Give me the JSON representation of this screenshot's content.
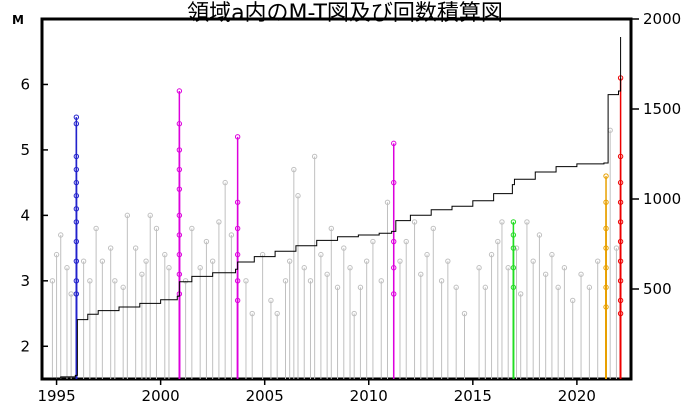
{
  "chart_data": {
    "type": "scatter",
    "title": "領域a内のM-T図及び回数積算図",
    "ylabel": "M",
    "y2label": "",
    "xlim": [
      1994.3,
      2022.6
    ],
    "ylim": [
      1.5,
      7.0
    ],
    "y2lim": [
      0,
      2000
    ],
    "x_ticks": [
      "1995",
      "2000",
      "2005",
      "2010",
      "2015",
      "2020"
    ],
    "x_tick_values": [
      1995,
      2000,
      2005,
      2010,
      2015,
      2020
    ],
    "y_ticks": [
      "2",
      "3",
      "4",
      "5",
      "6"
    ],
    "y_tick_values": [
      2,
      3,
      4,
      5,
      6
    ],
    "y2_ticks": [
      "500",
      "1000",
      "1500",
      "2000"
    ],
    "y2_tick_values": [
      500,
      1000,
      1500,
      2000
    ],
    "colors": {
      "background": "#c0c0c0",
      "blue": "#2222cc",
      "magenta": "#dd00dd",
      "green": "#22dd22",
      "orange": "#e8a000",
      "red": "#ee0000",
      "cumulative": "#000000"
    },
    "series": [
      {
        "color_key": "background",
        "points": [
          [
            1994.8,
            3.0
          ],
          [
            1995.0,
            3.4
          ],
          [
            1995.2,
            3.7
          ],
          [
            1995.5,
            3.2
          ],
          [
            1995.7,
            2.8
          ],
          [
            1996.3,
            3.3
          ],
          [
            1996.6,
            3.0
          ],
          [
            1996.9,
            3.8
          ],
          [
            1997.2,
            3.3
          ],
          [
            1997.6,
            3.5
          ],
          [
            1997.8,
            3.0
          ],
          [
            1998.2,
            2.9
          ],
          [
            1998.4,
            4.0
          ],
          [
            1998.8,
            3.5
          ],
          [
            1999.1,
            3.1
          ],
          [
            1999.3,
            3.3
          ],
          [
            1999.5,
            4.0
          ],
          [
            1999.8,
            3.8
          ],
          [
            2000.2,
            3.4
          ],
          [
            2000.4,
            3.2
          ],
          [
            2001.2,
            3.0
          ],
          [
            2001.5,
            3.8
          ],
          [
            2001.9,
            3.2
          ],
          [
            2002.2,
            3.6
          ],
          [
            2002.5,
            3.3
          ],
          [
            2002.8,
            3.9
          ],
          [
            2003.1,
            4.5
          ],
          [
            2003.4,
            3.7
          ],
          [
            2004.1,
            3.0
          ],
          [
            2004.4,
            2.5
          ],
          [
            2004.9,
            3.4
          ],
          [
            2005.3,
            2.7
          ],
          [
            2005.6,
            2.5
          ],
          [
            2006.0,
            3.0
          ],
          [
            2006.2,
            3.3
          ],
          [
            2006.4,
            4.7
          ],
          [
            2006.6,
            4.3
          ],
          [
            2006.9,
            3.2
          ],
          [
            2007.2,
            3.0
          ],
          [
            2007.4,
            4.9
          ],
          [
            2007.7,
            3.4
          ],
          [
            2008.0,
            3.1
          ],
          [
            2008.2,
            3.8
          ],
          [
            2008.5,
            2.9
          ],
          [
            2008.8,
            3.5
          ],
          [
            2009.1,
            3.2
          ],
          [
            2009.3,
            2.5
          ],
          [
            2009.6,
            2.9
          ],
          [
            2009.9,
            3.3
          ],
          [
            2010.2,
            3.6
          ],
          [
            2010.6,
            3.0
          ],
          [
            2010.9,
            4.2
          ],
          [
            2011.5,
            3.3
          ],
          [
            2011.8,
            3.6
          ],
          [
            2012.2,
            3.9
          ],
          [
            2012.5,
            3.1
          ],
          [
            2012.8,
            3.4
          ],
          [
            2013.1,
            3.8
          ],
          [
            2013.5,
            3.0
          ],
          [
            2013.8,
            3.3
          ],
          [
            2014.2,
            2.9
          ],
          [
            2014.6,
            2.5
          ],
          [
            2015.3,
            3.2
          ],
          [
            2015.6,
            2.9
          ],
          [
            2015.9,
            3.4
          ],
          [
            2016.2,
            3.6
          ],
          [
            2016.4,
            3.9
          ],
          [
            2016.7,
            3.2
          ],
          [
            2017.1,
            3.5
          ],
          [
            2017.3,
            2.8
          ],
          [
            2017.6,
            3.9
          ],
          [
            2017.9,
            3.3
          ],
          [
            2018.2,
            3.7
          ],
          [
            2018.5,
            3.1
          ],
          [
            2018.8,
            3.4
          ],
          [
            2019.1,
            2.9
          ],
          [
            2019.4,
            3.2
          ],
          [
            2019.8,
            2.7
          ],
          [
            2020.2,
            3.1
          ],
          [
            2020.6,
            2.9
          ],
          [
            2021.0,
            3.3
          ],
          [
            2021.6,
            5.3
          ],
          [
            2021.9,
            3.5
          ]
        ]
      },
      {
        "color_key": "blue",
        "points": [
          [
            1995.95,
            5.5
          ],
          [
            1995.95,
            5.4
          ],
          [
            1995.95,
            4.9
          ],
          [
            1995.95,
            4.7
          ],
          [
            1995.95,
            4.5
          ],
          [
            1995.95,
            4.3
          ],
          [
            1995.95,
            4.1
          ],
          [
            1995.95,
            3.9
          ],
          [
            1995.95,
            3.6
          ],
          [
            1995.95,
            3.3
          ],
          [
            1995.95,
            3.0
          ],
          [
            1995.95,
            2.8
          ]
        ]
      },
      {
        "color_key": "magenta",
        "points": [
          [
            2000.9,
            5.9
          ],
          [
            2000.9,
            5.4
          ],
          [
            2000.9,
            5.0
          ],
          [
            2000.9,
            4.7
          ],
          [
            2000.9,
            4.4
          ],
          [
            2000.9,
            4.0
          ],
          [
            2000.9,
            3.7
          ],
          [
            2000.9,
            3.4
          ],
          [
            2000.9,
            3.1
          ],
          [
            2000.9,
            2.8
          ],
          [
            2003.7,
            5.2
          ],
          [
            2003.7,
            4.2
          ],
          [
            2003.7,
            3.8
          ],
          [
            2003.7,
            3.4
          ],
          [
            2003.7,
            3.0
          ],
          [
            2003.7,
            2.7
          ],
          [
            2011.2,
            5.1
          ],
          [
            2011.2,
            4.5
          ],
          [
            2011.2,
            3.6
          ],
          [
            2011.2,
            3.2
          ],
          [
            2011.2,
            2.8
          ]
        ]
      },
      {
        "color_key": "green",
        "points": [
          [
            2016.95,
            3.9
          ],
          [
            2016.95,
            3.7
          ],
          [
            2016.95,
            3.5
          ],
          [
            2016.95,
            3.2
          ],
          [
            2016.95,
            2.9
          ]
        ]
      },
      {
        "color_key": "orange",
        "points": [
          [
            2021.4,
            4.6
          ],
          [
            2021.4,
            4.2
          ],
          [
            2021.4,
            3.8
          ],
          [
            2021.4,
            3.5
          ],
          [
            2021.4,
            3.2
          ],
          [
            2021.4,
            2.9
          ],
          [
            2021.4,
            2.6
          ]
        ]
      },
      {
        "color_key": "red",
        "points": [
          [
            2022.1,
            6.1
          ],
          [
            2022.1,
            4.9
          ],
          [
            2022.1,
            4.5
          ],
          [
            2022.1,
            4.2
          ],
          [
            2022.1,
            3.9
          ],
          [
            2022.1,
            3.6
          ],
          [
            2022.1,
            3.3
          ],
          [
            2022.1,
            3.0
          ],
          [
            2022.1,
            2.7
          ],
          [
            2022.1,
            2.5
          ]
        ]
      }
    ],
    "cumulative": [
      [
        1994.4,
        0
      ],
      [
        1994.8,
        5
      ],
      [
        1995.2,
        12
      ],
      [
        1995.9,
        20
      ],
      [
        1996.0,
        330
      ],
      [
        1996.5,
        360
      ],
      [
        1997.0,
        380
      ],
      [
        1998.0,
        400
      ],
      [
        1999.0,
        420
      ],
      [
        2000.0,
        440
      ],
      [
        2000.8,
        460
      ],
      [
        2000.9,
        540
      ],
      [
        2001.5,
        570
      ],
      [
        2002.5,
        590
      ],
      [
        2003.6,
        610
      ],
      [
        2003.7,
        650
      ],
      [
        2004.5,
        680
      ],
      [
        2005.5,
        710
      ],
      [
        2006.5,
        740
      ],
      [
        2007.5,
        770
      ],
      [
        2008.5,
        790
      ],
      [
        2009.5,
        800
      ],
      [
        2010.5,
        810
      ],
      [
        2011.1,
        820
      ],
      [
        2011.3,
        880
      ],
      [
        2012.0,
        910
      ],
      [
        2013.0,
        940
      ],
      [
        2014.0,
        960
      ],
      [
        2015.0,
        990
      ],
      [
        2016.0,
        1030
      ],
      [
        2016.9,
        1080
      ],
      [
        2017.0,
        1110
      ],
      [
        2018.0,
        1150
      ],
      [
        2019.0,
        1180
      ],
      [
        2020.0,
        1195
      ],
      [
        2021.3,
        1200
      ],
      [
        2021.5,
        1580
      ],
      [
        2022.0,
        1600
      ],
      [
        2022.1,
        1900
      ]
    ]
  }
}
